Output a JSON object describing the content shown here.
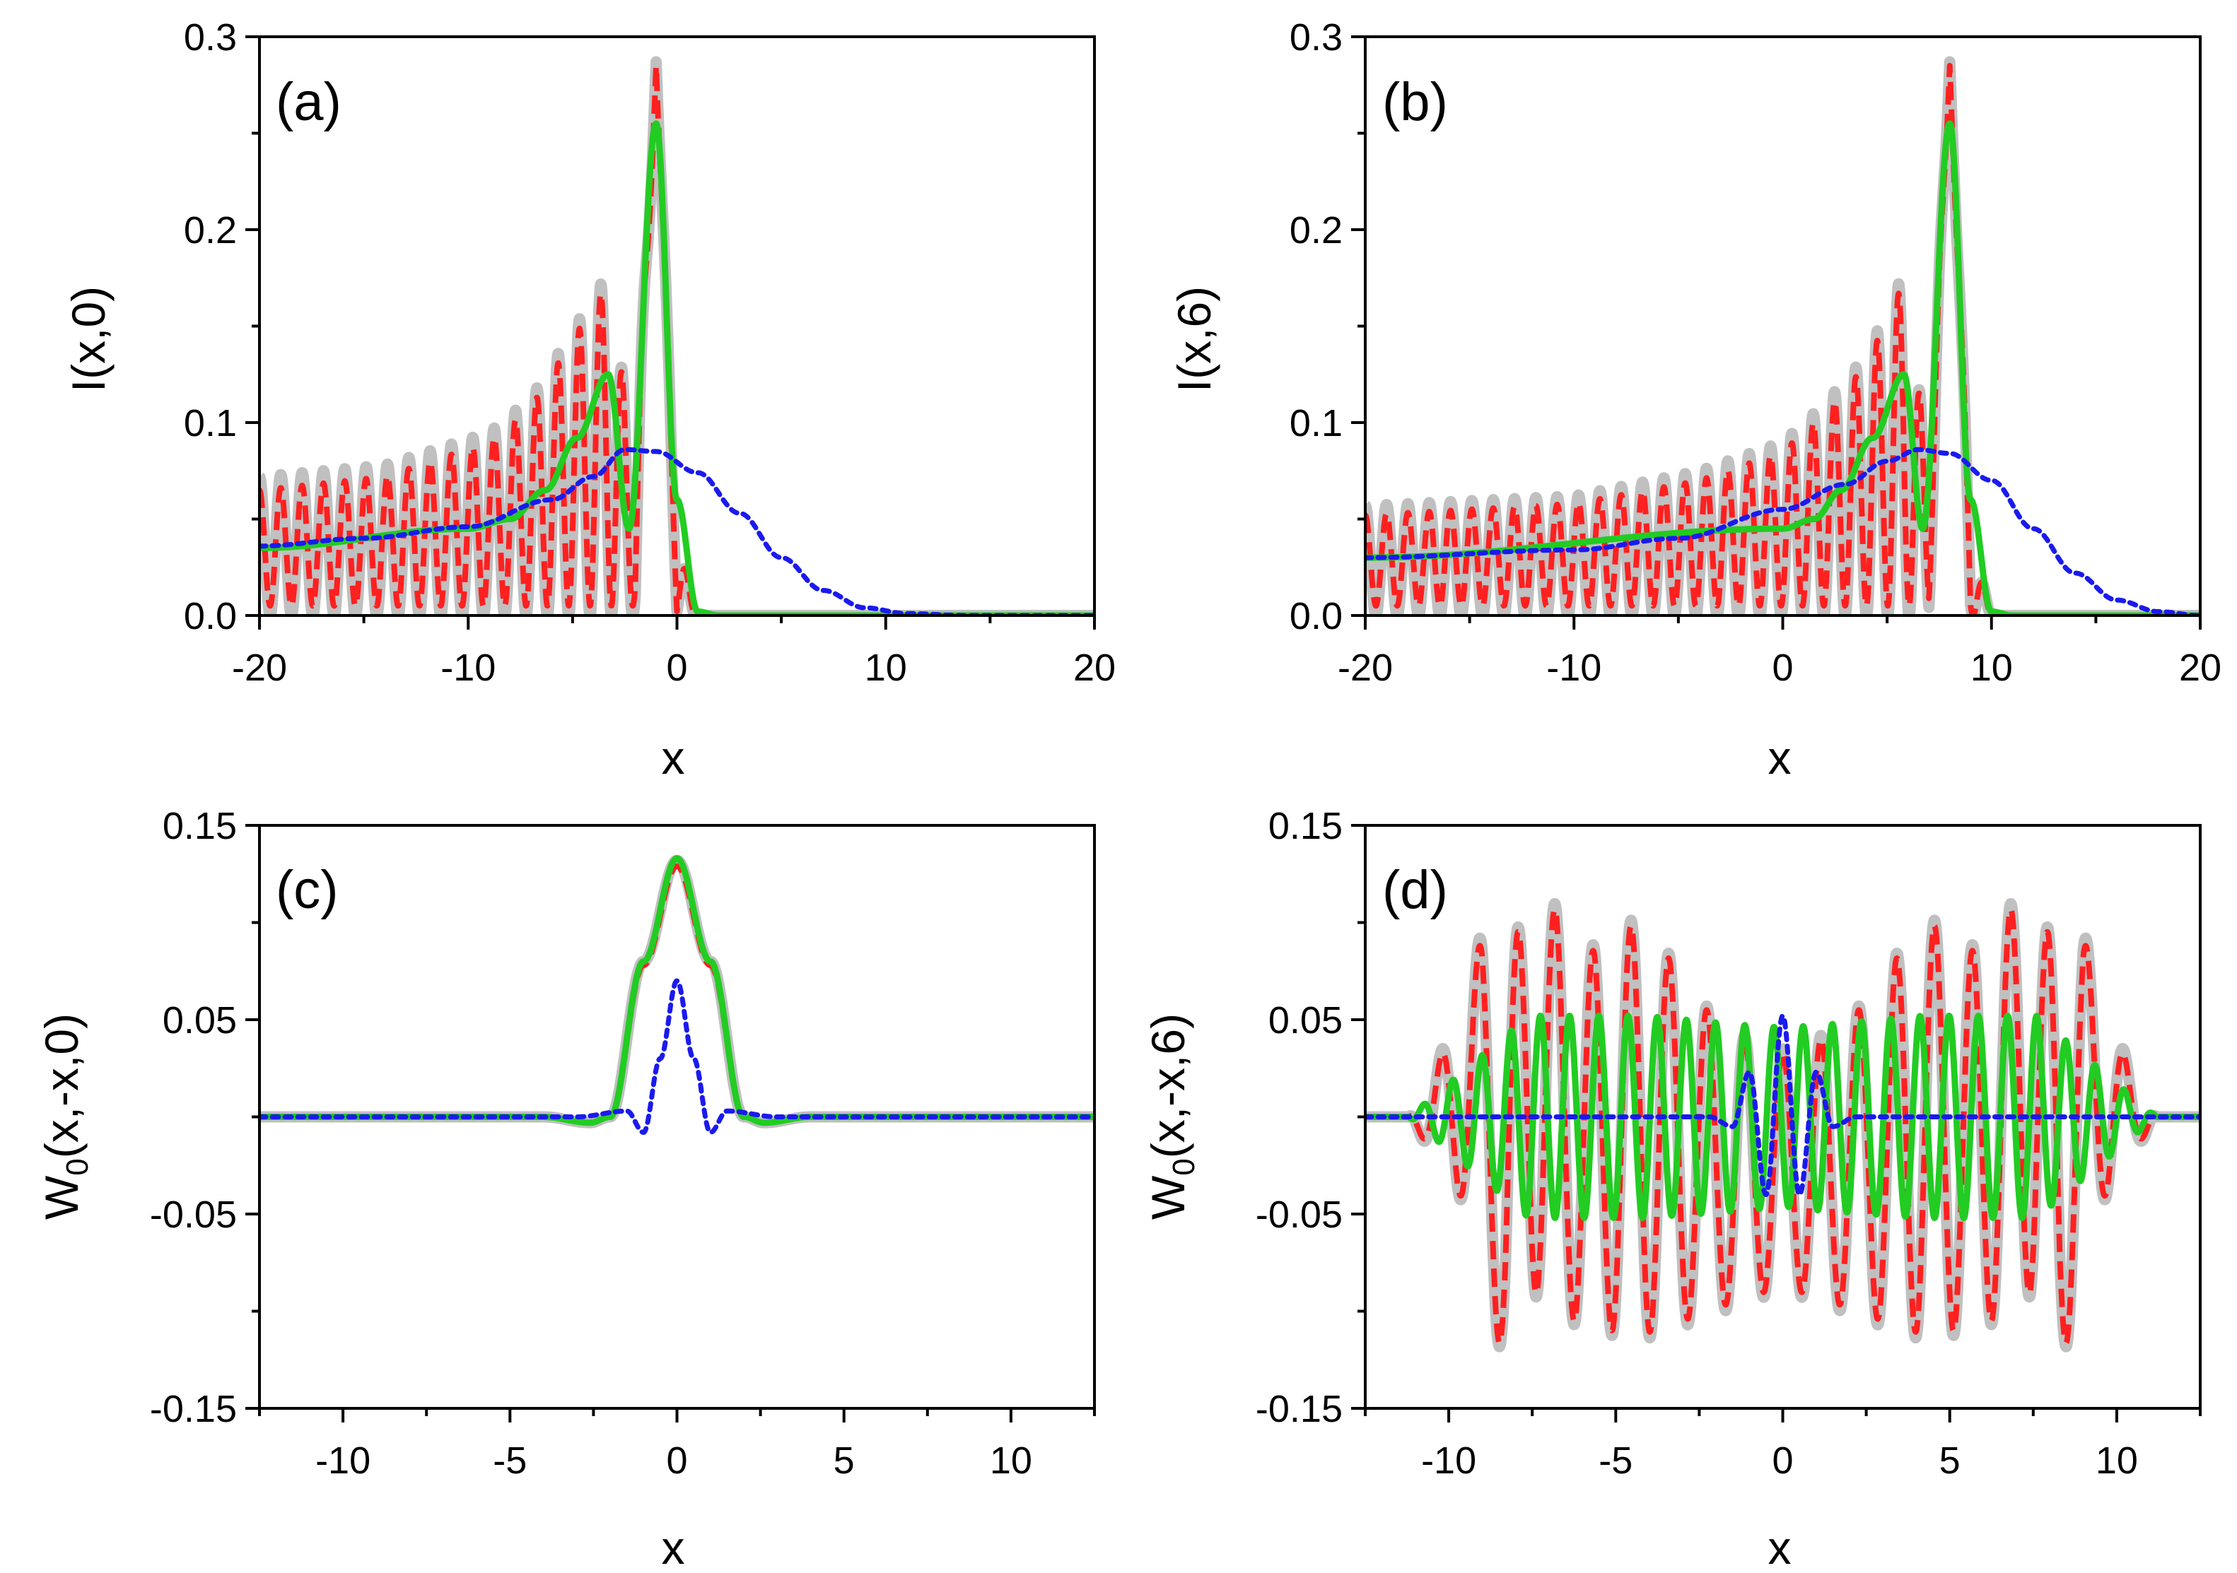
{
  "chart_data": [
    {
      "type": "line",
      "panel_label": "(a)",
      "xlabel": "x",
      "ylabel": "I(x,0)",
      "xlim": [
        -20,
        20
      ],
      "ylim": [
        0,
        0.3
      ],
      "x_ticks": [
        "-20",
        "-10",
        "0",
        "10",
        "20"
      ],
      "y_ticks": [
        "0.0",
        "0.1",
        "0.2",
        "0.3"
      ],
      "series": [
        {
          "color": "#c0c0c0",
          "style": "solid-thick",
          "x": [
            -20,
            -14,
            -9,
            -7,
            -5,
            -3.3,
            -2,
            -1,
            0,
            1,
            2,
            5,
            10,
            20
          ],
          "envelope_max": [
            0.072,
            0.078,
            0.095,
            0.113,
            0.148,
            0.178,
            0.08,
            0.287,
            0.04,
            0.0,
            0.0,
            0.0,
            0.0,
            0.0
          ],
          "envelope_min": [
            0.0,
            0.0,
            0.0,
            0.0,
            0.0,
            0.0,
            0.0,
            0.287,
            0.0,
            0.0,
            0.0,
            0.0,
            0.0,
            0.0
          ]
        },
        {
          "color": "#ff2020",
          "style": "dashed",
          "x": [
            -20,
            -14,
            -9,
            -7,
            -5,
            -3.3,
            -2,
            -1,
            0,
            1,
            2,
            5,
            10,
            20
          ],
          "envelope_max": [
            0.065,
            0.072,
            0.09,
            0.108,
            0.143,
            0.173,
            0.08,
            0.285,
            0.04,
            0.0,
            0.0,
            0.0,
            0.0,
            0.0
          ],
          "envelope_min": [
            0.005,
            0.005,
            0.005,
            0.005,
            0.005,
            0.005,
            0.005,
            0.285,
            0.0,
            0.0,
            0.0,
            0.0,
            0.0,
            0.0
          ]
        },
        {
          "color": "#22cc22",
          "style": "solid",
          "x": [
            -20,
            -10,
            -8,
            -6.3,
            -4.8,
            -3.3,
            -2.3,
            -1.0,
            0,
            1,
            2,
            20
          ],
          "y": [
            0.035,
            0.045,
            0.05,
            0.065,
            0.092,
            0.125,
            0.045,
            0.255,
            0.06,
            0.002,
            0.0,
            0.0
          ]
        },
        {
          "color": "#1a1aee",
          "style": "dotted",
          "x": [
            -20,
            -15,
            -10,
            -6,
            -4,
            -2.5,
            -1,
            1,
            3,
            5,
            7,
            9,
            11,
            14,
            20
          ],
          "y": [
            0.036,
            0.04,
            0.046,
            0.06,
            0.072,
            0.086,
            0.085,
            0.074,
            0.053,
            0.03,
            0.013,
            0.004,
            0.001,
            0.0,
            0.0
          ]
        }
      ]
    },
    {
      "type": "line",
      "panel_label": "(b)",
      "xlabel": "x",
      "ylabel": "I(x,6)",
      "xlim": [
        -20,
        20
      ],
      "ylim": [
        0,
        0.3
      ],
      "x_ticks": [
        "-20",
        "-10",
        "0",
        "10",
        "20"
      ],
      "y_ticks": [
        "0.0",
        "0.1",
        "0.2",
        "0.3"
      ],
      "series": [
        {
          "color": "#c0c0c0",
          "style": "solid-thick",
          "x": [
            -20,
            -10,
            -4,
            0,
            2,
            4,
            5.8,
            7,
            8,
            9,
            10,
            20
          ],
          "envelope_max": [
            0.057,
            0.062,
            0.075,
            0.09,
            0.11,
            0.135,
            0.178,
            0.08,
            0.287,
            0.04,
            0.0,
            0.0
          ],
          "envelope_min": [
            0.0,
            0.0,
            0.0,
            0.0,
            0.0,
            0.0,
            0.0,
            0.0,
            0.287,
            0.0,
            0.0,
            0.0
          ]
        },
        {
          "color": "#ff2020",
          "style": "dashed",
          "x": [
            -20,
            -10,
            -4,
            0,
            2,
            4,
            5.8,
            7,
            8,
            9,
            10,
            20
          ],
          "envelope_max": [
            0.052,
            0.058,
            0.07,
            0.085,
            0.105,
            0.13,
            0.173,
            0.08,
            0.285,
            0.04,
            0.0,
            0.0
          ],
          "envelope_min": [
            0.005,
            0.005,
            0.005,
            0.005,
            0.005,
            0.005,
            0.005,
            0.005,
            0.285,
            0.0,
            0.0,
            0.0
          ]
        },
        {
          "color": "#22cc22",
          "style": "solid",
          "x": [
            -20,
            0,
            1.5,
            2.8,
            4.3,
            5.8,
            6.7,
            8.0,
            9,
            10,
            11,
            20
          ],
          "y": [
            0.03,
            0.045,
            0.05,
            0.065,
            0.092,
            0.125,
            0.045,
            0.255,
            0.06,
            0.002,
            0.0,
            0.0
          ]
        },
        {
          "color": "#1a1aee",
          "style": "dotted",
          "x": [
            -20,
            -10,
            -5,
            0,
            3,
            5,
            6.5,
            8,
            10,
            12,
            14,
            16,
            18,
            20
          ],
          "y": [
            0.03,
            0.034,
            0.04,
            0.055,
            0.068,
            0.08,
            0.086,
            0.084,
            0.07,
            0.045,
            0.022,
            0.008,
            0.002,
            0.0
          ]
        }
      ]
    },
    {
      "type": "line",
      "panel_label": "(c)",
      "xlabel": "x",
      "ylabel": "W0(x,-x,0)",
      "xlim": [
        -12.5,
        12.5
      ],
      "ylim": [
        -0.15,
        0.15
      ],
      "x_ticks": [
        "-10",
        "-5",
        "0",
        "5",
        "10"
      ],
      "y_ticks": [
        "0.15",
        "0.05",
        "-0.05",
        "-0.15"
      ],
      "series": [
        {
          "color": "#c0c0c0",
          "style": "solid-thick",
          "x": [
            -12.5,
            -4,
            -2.6,
            -2,
            -1,
            0,
            1,
            2,
            2.6,
            4,
            12.5
          ],
          "y": [
            0,
            0,
            -0.003,
            0.0,
            0.08,
            0.132,
            0.08,
            0.0,
            -0.003,
            0,
            0
          ]
        },
        {
          "color": "#ff2020",
          "style": "dashed",
          "x": [
            -12.5,
            -4,
            -2.6,
            -2,
            -1,
            0,
            1,
            2,
            2.6,
            4,
            12.5
          ],
          "y": [
            0,
            0,
            -0.003,
            0.0,
            0.078,
            0.129,
            0.078,
            0.0,
            -0.003,
            0,
            0
          ]
        },
        {
          "color": "#22cc22",
          "style": "solid",
          "x": [
            -12.5,
            -4,
            -2.6,
            -2,
            -1,
            0,
            1,
            2,
            2.6,
            4,
            12.5
          ],
          "y": [
            0,
            0,
            -0.003,
            0.0,
            0.08,
            0.133,
            0.08,
            0.0,
            -0.003,
            0,
            0
          ]
        },
        {
          "color": "#1a1aee",
          "style": "dotted",
          "x": [
            -12.5,
            -3,
            -1.5,
            -1,
            -0.5,
            0,
            0.5,
            1,
            1.5,
            3,
            12.5
          ],
          "y": [
            0,
            0,
            0.003,
            -0.008,
            0.03,
            0.07,
            0.03,
            -0.008,
            0.003,
            0,
            0
          ]
        }
      ]
    },
    {
      "type": "line",
      "panel_label": "(d)",
      "xlabel": "x",
      "ylabel": "W0(x,-x,6)",
      "xlim": [
        -12.5,
        12.5
      ],
      "ylim": [
        -0.15,
        0.15
      ],
      "x_ticks": [
        "-10",
        "-5",
        "0",
        "5",
        "10"
      ],
      "y_ticks": [
        "0.15",
        "0.05",
        "-0.05",
        "-0.15"
      ],
      "series": [
        {
          "color": "#c0c0c0",
          "style": "solid-thick",
          "x": [
            -12.5,
            -11.2,
            -10.5,
            -9,
            -8.3,
            -7.6,
            -6,
            -4.2,
            -2.5,
            -1,
            0,
            1,
            2.5,
            4.2,
            6,
            7.6,
            8.3,
            9,
            10.5,
            11.2,
            12.5
          ],
          "envelope_max": [
            0,
            0.0,
            0.02,
            0.096,
            0.06,
            0.133,
            0.085,
            0.105,
            0.06,
            0.04,
            0.035,
            0.04,
            0.06,
            0.105,
            0.085,
            0.133,
            0.06,
            0.096,
            0.02,
            0.0,
            0
          ],
          "envelope_min": [
            0,
            0.0,
            -0.02,
            -0.06,
            -0.142,
            -0.09,
            -0.11,
            -0.115,
            -0.105,
            -0.095,
            -0.09,
            -0.095,
            -0.105,
            -0.115,
            -0.11,
            -0.09,
            -0.142,
            -0.06,
            -0.02,
            0.0,
            0
          ]
        },
        {
          "color": "#ff2020",
          "style": "dashed",
          "x": [
            -12.5,
            -11.2,
            -10.5,
            -9,
            -8.3,
            -7.6,
            -6,
            -4.2,
            -2.5,
            -1,
            0,
            1,
            2.5,
            4.2,
            6,
            7.6,
            8.3,
            9,
            10.5,
            11.2,
            12.5
          ],
          "envelope_max": [
            0,
            0.0,
            0.018,
            0.092,
            0.058,
            0.13,
            0.082,
            0.102,
            0.058,
            0.038,
            0.033,
            0.038,
            0.058,
            0.102,
            0.082,
            0.13,
            0.058,
            0.092,
            0.018,
            0.0,
            0
          ],
          "envelope_min": [
            0,
            0.0,
            -0.018,
            -0.058,
            -0.14,
            -0.088,
            -0.108,
            -0.112,
            -0.102,
            -0.092,
            -0.088,
            -0.092,
            -0.102,
            -0.112,
            -0.108,
            -0.088,
            -0.14,
            -0.058,
            -0.018,
            0.0,
            0
          ]
        },
        {
          "color": "#22cc22",
          "style": "solid",
          "x": [
            -12.5,
            -11.2,
            -10.5,
            -7.6,
            -4.2,
            -1,
            0,
            1,
            4.2,
            7.6,
            10.5,
            11.2,
            12.5
          ],
          "envelope_max": [
            0,
            0.0,
            0.01,
            0.052,
            0.052,
            0.047,
            0.046,
            0.047,
            0.052,
            0.052,
            0.01,
            0.0,
            0
          ],
          "envelope_min": [
            0,
            0.0,
            -0.01,
            -0.052,
            -0.052,
            -0.048,
            -0.046,
            -0.048,
            -0.052,
            -0.052,
            -0.01,
            0.0,
            0
          ]
        },
        {
          "color": "#1a1aee",
          "style": "dotted",
          "x": [
            -12.5,
            -2.2,
            -1.5,
            -1,
            -0.5,
            0,
            0.5,
            1,
            1.5,
            2.2,
            12.5
          ],
          "y": [
            0,
            0.0,
            -0.005,
            0.023,
            -0.04,
            0.052,
            -0.04,
            0.023,
            -0.005,
            0.0,
            0
          ]
        }
      ]
    }
  ]
}
